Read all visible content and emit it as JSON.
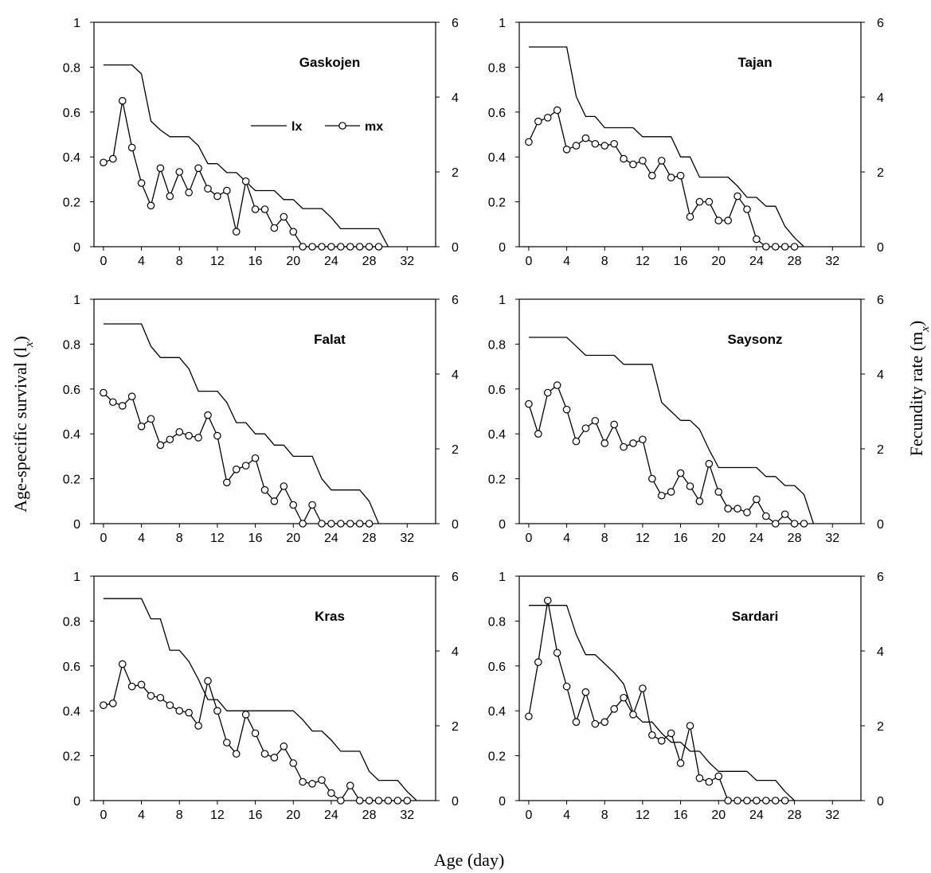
{
  "figure": {
    "xlabel": "Age (day)",
    "ylabel_left": "Age-specific survival (l",
    "ylabel_left_sub": "x",
    "ylabel_left_close": ")",
    "ylabel_right": "Fecundity rate (m",
    "ylabel_right_sub": "x",
    "ylabel_right_close": ")",
    "legend": {
      "lx": "lx",
      "mx": "mx"
    }
  },
  "chart_data": [
    {
      "type": "line",
      "title": "Gaskojen",
      "xlim": [
        -1,
        35
      ],
      "ylim_left": [
        0,
        1
      ],
      "ylim_right": [
        0,
        6
      ],
      "xticks": [
        0,
        4,
        8,
        12,
        16,
        20,
        24,
        28,
        32
      ],
      "yticks_left": [
        "0",
        "0.2",
        "0.4",
        "0.6",
        "0.8",
        "1"
      ],
      "yticks_right": [
        "0",
        "2",
        "4",
        "6"
      ],
      "series": [
        {
          "name": "lx",
          "axis": "left",
          "x": [
            0,
            1,
            2,
            3,
            4,
            5,
            6,
            7,
            8,
            9,
            10,
            11,
            12,
            13,
            14,
            15,
            16,
            17,
            18,
            19,
            20,
            21,
            22,
            23,
            24,
            25,
            26,
            27,
            28,
            29,
            30
          ],
          "values": [
            0.81,
            0.81,
            0.81,
            0.81,
            0.77,
            0.56,
            0.52,
            0.49,
            0.49,
            0.49,
            0.45,
            0.37,
            0.37,
            0.33,
            0.33,
            0.29,
            0.25,
            0.25,
            0.25,
            0.21,
            0.21,
            0.17,
            0.17,
            0.17,
            0.13,
            0.08,
            0.08,
            0.08,
            0.08,
            0.08,
            0
          ]
        },
        {
          "name": "mx",
          "axis": "right",
          "x": [
            0,
            1,
            2,
            3,
            4,
            5,
            6,
            7,
            8,
            9,
            10,
            11,
            12,
            13,
            14,
            15,
            16,
            17,
            18,
            19,
            20,
            21,
            22,
            23,
            24,
            25,
            26,
            27,
            28,
            29
          ],
          "values": [
            2.25,
            2.35,
            3.9,
            2.65,
            1.7,
            1.1,
            2.1,
            1.35,
            2.0,
            1.45,
            2.1,
            1.55,
            1.35,
            1.5,
            0.4,
            1.75,
            1.0,
            1.0,
            0.5,
            0.8,
            0.4,
            0,
            0,
            0,
            0,
            0,
            0,
            0,
            0,
            0
          ]
        }
      ]
    },
    {
      "type": "line",
      "title": "Tajan",
      "xlim": [
        -1,
        35
      ],
      "ylim_left": [
        0,
        1
      ],
      "ylim_right": [
        0,
        6
      ],
      "xticks": [
        0,
        4,
        8,
        12,
        16,
        20,
        24,
        28,
        32
      ],
      "yticks_left": [
        "0",
        "0.2",
        "0.4",
        "0.6",
        "0.8",
        "1"
      ],
      "yticks_right": [
        "0",
        "2",
        "4",
        "6"
      ],
      "series": [
        {
          "name": "lx",
          "axis": "left",
          "x": [
            0,
            1,
            2,
            3,
            4,
            5,
            6,
            7,
            8,
            9,
            10,
            11,
            12,
            13,
            14,
            15,
            16,
            17,
            18,
            19,
            20,
            21,
            22,
            23,
            24,
            25,
            26,
            27,
            28,
            29
          ],
          "values": [
            0.89,
            0.89,
            0.89,
            0.89,
            0.89,
            0.67,
            0.58,
            0.58,
            0.53,
            0.53,
            0.53,
            0.53,
            0.49,
            0.49,
            0.49,
            0.49,
            0.4,
            0.4,
            0.31,
            0.31,
            0.31,
            0.31,
            0.27,
            0.22,
            0.22,
            0.18,
            0.18,
            0.09,
            0.04,
            0
          ]
        },
        {
          "name": "mx",
          "axis": "right",
          "x": [
            0,
            1,
            2,
            3,
            4,
            5,
            6,
            7,
            8,
            9,
            10,
            11,
            12,
            13,
            14,
            15,
            16,
            17,
            18,
            19,
            20,
            21,
            22,
            23,
            24,
            25,
            26,
            27,
            28
          ],
          "values": [
            2.8,
            3.35,
            3.45,
            3.65,
            2.6,
            2.7,
            2.9,
            2.75,
            2.7,
            2.75,
            2.35,
            2.2,
            2.3,
            1.9,
            2.3,
            1.85,
            1.9,
            0.8,
            1.2,
            1.2,
            0.7,
            0.7,
            1.35,
            1.0,
            0.2,
            0,
            0,
            0,
            0
          ]
        }
      ]
    },
    {
      "type": "line",
      "title": "Falat",
      "xlim": [
        -1,
        35
      ],
      "ylim_left": [
        0,
        1
      ],
      "ylim_right": [
        0,
        6
      ],
      "xticks": [
        0,
        4,
        8,
        12,
        16,
        20,
        24,
        28,
        32
      ],
      "yticks_left": [
        "0",
        "0.2",
        "0.4",
        "0.6",
        "0.8",
        "1"
      ],
      "yticks_right": [
        "0",
        "2",
        "4",
        "6"
      ],
      "series": [
        {
          "name": "lx",
          "axis": "left",
          "x": [
            0,
            1,
            2,
            3,
            4,
            5,
            6,
            7,
            8,
            9,
            10,
            11,
            12,
            13,
            14,
            15,
            16,
            17,
            18,
            19,
            20,
            21,
            22,
            23,
            24,
            25,
            26,
            27,
            28,
            29
          ],
          "values": [
            0.89,
            0.89,
            0.89,
            0.89,
            0.89,
            0.79,
            0.74,
            0.74,
            0.74,
            0.69,
            0.59,
            0.59,
            0.59,
            0.54,
            0.45,
            0.45,
            0.4,
            0.4,
            0.35,
            0.35,
            0.3,
            0.3,
            0.3,
            0.2,
            0.15,
            0.15,
            0.15,
            0.15,
            0.1,
            0
          ]
        },
        {
          "name": "mx",
          "axis": "right",
          "x": [
            0,
            1,
            2,
            3,
            4,
            5,
            6,
            7,
            8,
            9,
            10,
            11,
            12,
            13,
            14,
            15,
            16,
            17,
            18,
            19,
            20,
            21,
            22,
            23,
            24,
            25,
            26,
            27,
            28
          ],
          "values": [
            3.5,
            3.25,
            3.15,
            3.4,
            2.6,
            2.8,
            2.1,
            2.25,
            2.45,
            2.35,
            2.3,
            2.9,
            2.35,
            1.1,
            1.45,
            1.55,
            1.75,
            0.9,
            0.6,
            1.0,
            0.5,
            0,
            0.5,
            0,
            0,
            0,
            0,
            0,
            0
          ]
        }
      ]
    },
    {
      "type": "line",
      "title": "Saysonz",
      "xlim": [
        -1,
        35
      ],
      "ylim_left": [
        0,
        1
      ],
      "ylim_right": [
        0,
        6
      ],
      "xticks": [
        0,
        4,
        8,
        12,
        16,
        20,
        24,
        28,
        32
      ],
      "yticks_left": [
        "0",
        "0.2",
        "0.4",
        "0.6",
        "0.8",
        "1"
      ],
      "yticks_right": [
        "0",
        "2",
        "4",
        "6"
      ],
      "series": [
        {
          "name": "lx",
          "axis": "left",
          "x": [
            0,
            1,
            2,
            3,
            4,
            5,
            6,
            7,
            8,
            9,
            10,
            11,
            12,
            13,
            14,
            15,
            16,
            17,
            18,
            19,
            20,
            21,
            22,
            23,
            24,
            25,
            26,
            27,
            28,
            29,
            30
          ],
          "values": [
            0.83,
            0.83,
            0.83,
            0.83,
            0.83,
            0.79,
            0.75,
            0.75,
            0.75,
            0.75,
            0.71,
            0.71,
            0.71,
            0.71,
            0.54,
            0.5,
            0.46,
            0.46,
            0.42,
            0.33,
            0.25,
            0.25,
            0.25,
            0.25,
            0.25,
            0.21,
            0.21,
            0.17,
            0.17,
            0.13,
            0
          ]
        },
        {
          "name": "mx",
          "axis": "right",
          "x": [
            0,
            1,
            2,
            3,
            4,
            5,
            6,
            7,
            8,
            9,
            10,
            11,
            12,
            13,
            14,
            15,
            16,
            17,
            18,
            19,
            20,
            21,
            22,
            23,
            24,
            25,
            26,
            27,
            28,
            29
          ],
          "values": [
            3.2,
            2.4,
            3.5,
            3.7,
            3.05,
            2.2,
            2.55,
            2.75,
            2.15,
            2.65,
            2.05,
            2.15,
            2.25,
            1.2,
            0.75,
            0.85,
            1.35,
            1.0,
            0.6,
            1.6,
            0.85,
            0.4,
            0.4,
            0.3,
            0.65,
            0.2,
            0,
            0.25,
            0,
            0
          ]
        }
      ]
    },
    {
      "type": "line",
      "title": "Kras",
      "xlim": [
        -1,
        35
      ],
      "ylim_left": [
        0,
        1
      ],
      "ylim_right": [
        0,
        6
      ],
      "xticks": [
        0,
        4,
        8,
        12,
        16,
        20,
        24,
        28,
        32
      ],
      "yticks_left": [
        "0",
        "0.2",
        "0.4",
        "0.6",
        "0.8",
        "1"
      ],
      "yticks_right": [
        "0",
        "2",
        "4",
        "6"
      ],
      "series": [
        {
          "name": "lx",
          "axis": "left",
          "x": [
            0,
            1,
            2,
            3,
            4,
            5,
            6,
            7,
            8,
            9,
            10,
            11,
            12,
            13,
            14,
            15,
            16,
            17,
            18,
            19,
            20,
            21,
            22,
            23,
            24,
            25,
            26,
            27,
            28,
            29,
            30,
            31,
            32,
            33
          ],
          "values": [
            0.9,
            0.9,
            0.9,
            0.9,
            0.9,
            0.81,
            0.81,
            0.67,
            0.67,
            0.62,
            0.54,
            0.45,
            0.45,
            0.4,
            0.4,
            0.4,
            0.4,
            0.4,
            0.4,
            0.4,
            0.4,
            0.36,
            0.31,
            0.31,
            0.27,
            0.22,
            0.22,
            0.22,
            0.13,
            0.09,
            0.09,
            0.09,
            0.04,
            0
          ]
        },
        {
          "name": "mx",
          "axis": "right",
          "x": [
            0,
            1,
            2,
            3,
            4,
            5,
            6,
            7,
            8,
            9,
            10,
            11,
            12,
            13,
            14,
            15,
            16,
            17,
            18,
            19,
            20,
            21,
            22,
            23,
            24,
            25,
            26,
            27,
            28,
            29,
            30,
            31,
            32
          ],
          "values": [
            2.55,
            2.6,
            3.65,
            3.05,
            3.1,
            2.8,
            2.75,
            2.55,
            2.4,
            2.35,
            2.0,
            3.2,
            2.4,
            1.55,
            1.25,
            2.3,
            1.8,
            1.25,
            1.15,
            1.45,
            1.0,
            0.5,
            0.45,
            0.55,
            0.2,
            0,
            0.4,
            0,
            0,
            0,
            0,
            0,
            0
          ]
        }
      ]
    },
    {
      "type": "line",
      "title": "Sardari",
      "xlim": [
        -1,
        35
      ],
      "ylim_left": [
        0,
        1
      ],
      "ylim_right": [
        0,
        6
      ],
      "xticks": [
        0,
        4,
        8,
        12,
        16,
        20,
        24,
        28,
        32
      ],
      "yticks_left": [
        "0",
        "0.2",
        "0.4",
        "0.6",
        "0.8",
        "1"
      ],
      "yticks_right": [
        "0",
        "2",
        "4",
        "6"
      ],
      "series": [
        {
          "name": "lx",
          "axis": "left",
          "x": [
            0,
            1,
            2,
            3,
            4,
            5,
            6,
            7,
            8,
            9,
            10,
            11,
            12,
            13,
            14,
            15,
            16,
            17,
            18,
            19,
            20,
            21,
            22,
            23,
            24,
            25,
            26,
            27,
            28
          ],
          "values": [
            0.87,
            0.87,
            0.87,
            0.87,
            0.87,
            0.74,
            0.65,
            0.65,
            0.61,
            0.57,
            0.52,
            0.39,
            0.35,
            0.35,
            0.3,
            0.26,
            0.26,
            0.22,
            0.22,
            0.17,
            0.13,
            0.13,
            0.13,
            0.13,
            0.09,
            0.09,
            0.09,
            0.04,
            0
          ]
        },
        {
          "name": "mx",
          "axis": "right",
          "x": [
            0,
            1,
            2,
            3,
            4,
            5,
            6,
            7,
            8,
            9,
            10,
            11,
            12,
            13,
            14,
            15,
            16,
            17,
            18,
            19,
            20,
            21,
            22,
            23,
            24,
            25,
            26,
            27
          ],
          "values": [
            2.25,
            3.7,
            5.35,
            3.95,
            3.05,
            2.1,
            2.9,
            2.05,
            2.1,
            2.45,
            2.75,
            2.3,
            3.0,
            1.75,
            1.6,
            1.8,
            1.0,
            2.0,
            0.6,
            0.5,
            0.65,
            0,
            0,
            0,
            0,
            0,
            0,
            0
          ]
        }
      ]
    }
  ]
}
